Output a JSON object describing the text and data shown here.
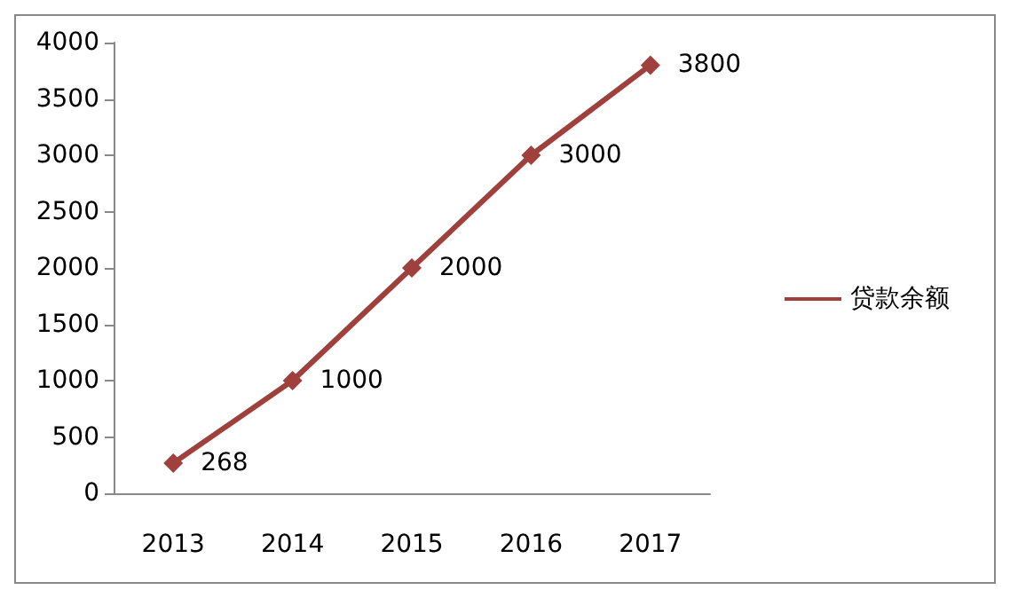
{
  "chart_data": {
    "type": "line",
    "categories": [
      "2013",
      "2014",
      "2015",
      "2016",
      "2017"
    ],
    "series": [
      {
        "name": "贷款余额",
        "color": "#a0403c",
        "values": [
          268,
          1000,
          2000,
          3000,
          3800
        ]
      }
    ],
    "ylim": [
      0,
      4000
    ],
    "yticks": [
      0,
      500,
      1000,
      1500,
      2000,
      2500,
      3000,
      3500,
      4000
    ],
    "grid": false,
    "legend": "right",
    "marker": "diamond",
    "line_style": "solid",
    "data_labels": true
  }
}
